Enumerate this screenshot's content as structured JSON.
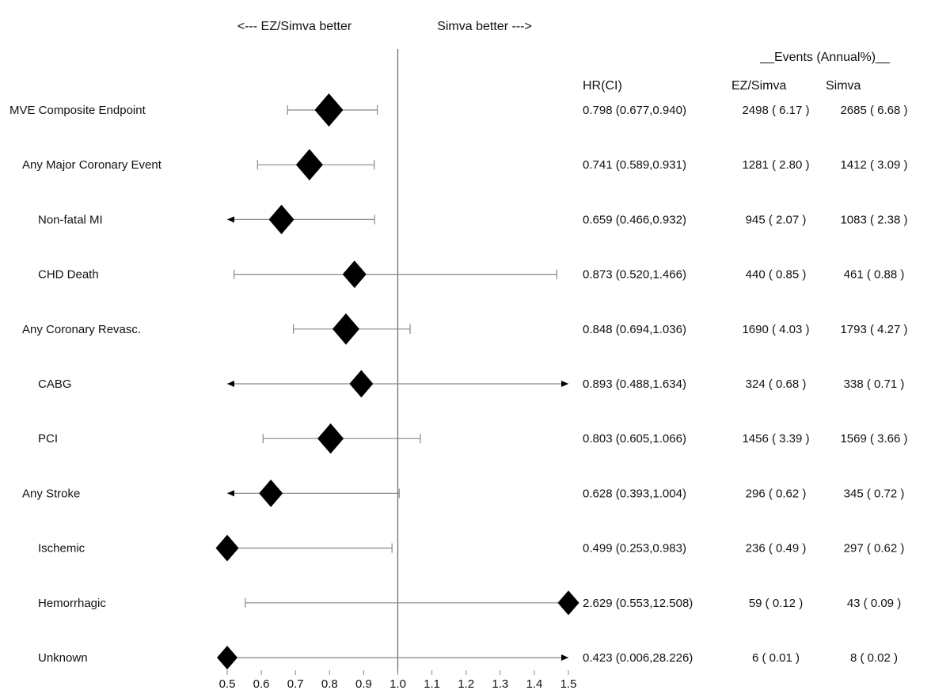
{
  "chart_data": {
    "type": "forest",
    "direction_labels": {
      "left": "<--- EZ/Simva better",
      "right": "Simva better --->"
    },
    "columns": {
      "group_header": "__Events (Annual%)__",
      "hr": "HR(CI)",
      "ez": "EZ/Simva",
      "simva": "Simva"
    },
    "xlim": [
      0.5,
      1.5
    ],
    "reference_line": 1.0,
    "ticks": [
      "0.5",
      "0.6",
      "0.7",
      "0.8",
      "0.9",
      "1.0",
      "1.1",
      "1.2",
      "1.3",
      "1.4",
      "1.5"
    ],
    "rows": [
      {
        "label": "MVE Composite Endpoint",
        "indent": 0,
        "hr": 0.798,
        "lo": 0.677,
        "hi": 0.94,
        "hr_text": "0.798 (0.677,0.940)",
        "ez": "2498 ( 6.17 )",
        "simva": "2685 ( 6.68 )"
      },
      {
        "label": "Any Major Coronary Event",
        "indent": 1,
        "hr": 0.741,
        "lo": 0.589,
        "hi": 0.931,
        "hr_text": "0.741 (0.589,0.931)",
        "ez": "1281 ( 2.80 )",
        "simva": "1412 ( 3.09 )"
      },
      {
        "label": "Non-fatal MI",
        "indent": 2,
        "hr": 0.659,
        "lo": 0.466,
        "hi": 0.932,
        "hr_text": "0.659 (0.466,0.932)",
        "ez": "945 ( 2.07 )",
        "simva": "1083 ( 2.38 )"
      },
      {
        "label": "CHD Death",
        "indent": 2,
        "hr": 0.873,
        "lo": 0.52,
        "hi": 1.466,
        "hr_text": "0.873 (0.520,1.466)",
        "ez": "440 ( 0.85 )",
        "simva": "461 ( 0.88 )"
      },
      {
        "label": "Any Coronary Revasc.",
        "indent": 1,
        "hr": 0.848,
        "lo": 0.694,
        "hi": 1.036,
        "hr_text": "0.848 (0.694,1.036)",
        "ez": "1690 ( 4.03 )",
        "simva": "1793 ( 4.27 )"
      },
      {
        "label": "CABG",
        "indent": 2,
        "hr": 0.893,
        "lo": 0.488,
        "hi": 1.634,
        "hr_text": "0.893 (0.488,1.634)",
        "ez": "324 ( 0.68 )",
        "simva": "338 ( 0.71 )"
      },
      {
        "label": "PCI",
        "indent": 2,
        "hr": 0.803,
        "lo": 0.605,
        "hi": 1.066,
        "hr_text": "0.803 (0.605,1.066)",
        "ez": "1456 ( 3.39 )",
        "simva": "1569 ( 3.66 )"
      },
      {
        "label": "Any Stroke",
        "indent": 1,
        "hr": 0.628,
        "lo": 0.393,
        "hi": 1.004,
        "hr_text": "0.628 (0.393,1.004)",
        "ez": "296 ( 0.62 )",
        "simva": "345 ( 0.72 )"
      },
      {
        "label": "Ischemic",
        "indent": 2,
        "hr": 0.499,
        "lo": 0.253,
        "hi": 0.983,
        "hr_text": "0.499 (0.253,0.983)",
        "ez": "236 ( 0.49 )",
        "simva": "297 ( 0.62 )"
      },
      {
        "label": "Hemorrhagic",
        "indent": 2,
        "hr": 2.629,
        "lo": 0.553,
        "hi": 12.508,
        "hr_text": "2.629 (0.553,12.508)",
        "ez": "59 ( 0.12 )",
        "simva": "43 ( 0.09 )"
      },
      {
        "label": "Unknown",
        "indent": 2,
        "hr": 0.423,
        "lo": 0.006,
        "hi": 28.226,
        "hr_text": "0.423 (0.006,28.226)",
        "ez": "6 ( 0.01 )",
        "simva": "8 ( 0.02 )"
      }
    ],
    "marker_weight": [
      1.0,
      0.9,
      0.8,
      0.7,
      0.9,
      0.7,
      0.85,
      0.7,
      0.65,
      0.55,
      0.5
    ],
    "colors": {
      "marker": "#000000",
      "ci_line": "#888888",
      "reference": "#666666",
      "text": "#111111"
    }
  }
}
